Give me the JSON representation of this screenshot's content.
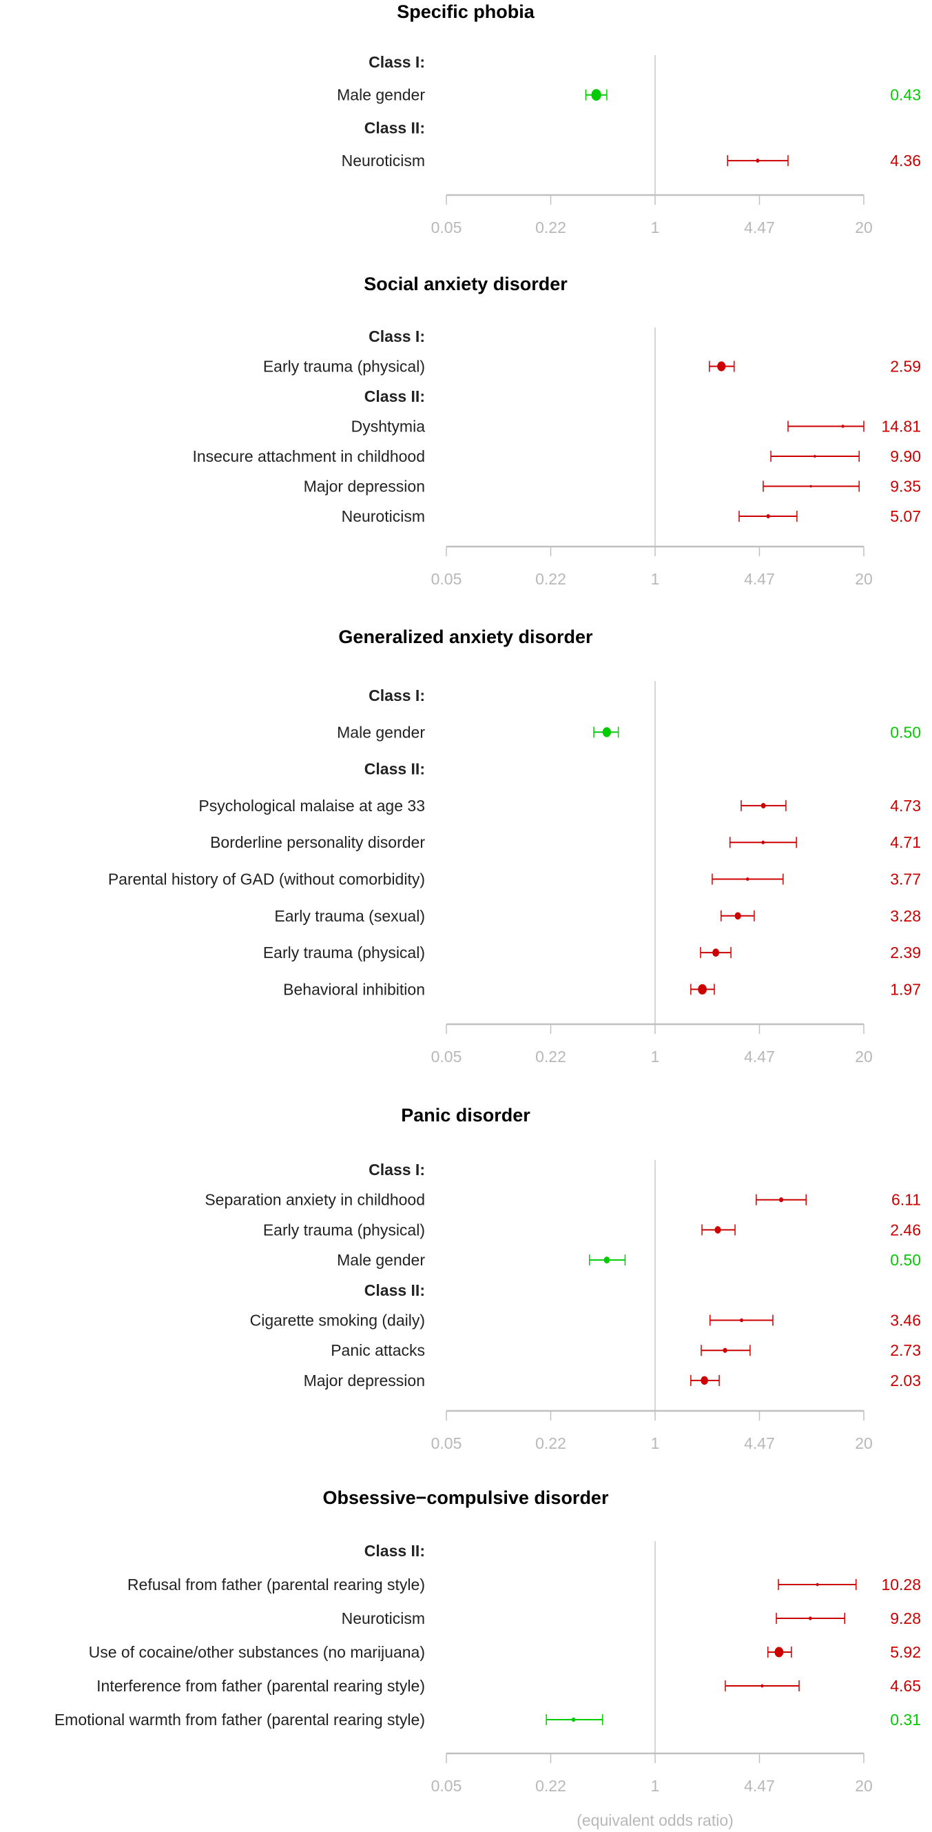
{
  "colors": {
    "risk": "#CC0000",
    "protective": "#00CC00",
    "axis": "#C0C0C0",
    "refline": "#C8C8C8"
  },
  "chart_data": [
    {
      "type": "forest",
      "title": "Specific phobia",
      "x_scale": "log",
      "xlim": [
        0.05,
        20
      ],
      "ticks": [
        "0.05",
        "0.22",
        "1",
        "4.47",
        "20"
      ],
      "tick_values": [
        0.05,
        0.2236,
        1,
        4.472,
        20
      ],
      "rows": [
        {
          "header": true,
          "label": "Class I:"
        },
        {
          "label": "Male gender",
          "or": 0.43,
          "ci_low": 0.37,
          "ci_high": 0.5,
          "value_text": "0.43"
        },
        {
          "header": true,
          "label": "Class II:"
        },
        {
          "label": "Neuroticism",
          "or": 4.36,
          "ci_low": 2.83,
          "ci_high": 6.74,
          "value_text": "4.36"
        }
      ]
    },
    {
      "type": "forest",
      "title": "Social anxiety disorder",
      "x_scale": "log",
      "xlim": [
        0.05,
        20
      ],
      "ticks": [
        "0.05",
        "0.22",
        "1",
        "4.47",
        "20"
      ],
      "tick_values": [
        0.05,
        0.2236,
        1,
        4.472,
        20
      ],
      "rows": [
        {
          "header": true,
          "label": "Class I:"
        },
        {
          "label": "Early trauma (physical)",
          "or": 2.59,
          "ci_low": 2.18,
          "ci_high": 3.11,
          "value_text": "2.59"
        },
        {
          "header": true,
          "label": "Class II:"
        },
        {
          "label": "Dyshtymia",
          "or": 14.81,
          "ci_low": 6.74,
          "ci_high": 20,
          "value_text": "14.81"
        },
        {
          "label": "Insecure attachment in childhood",
          "or": 9.9,
          "ci_low": 5.27,
          "ci_high": 18.7,
          "value_text": "9.90"
        },
        {
          "label": "Major depression",
          "or": 9.35,
          "ci_low": 4.72,
          "ci_high": 18.7,
          "value_text": "9.35"
        },
        {
          "label": "Neuroticism",
          "or": 5.07,
          "ci_low": 3.34,
          "ci_high": 7.66,
          "value_text": "5.07"
        }
      ]
    },
    {
      "type": "forest",
      "title": "Generalized anxiety disorder",
      "x_scale": "log",
      "xlim": [
        0.05,
        20
      ],
      "ticks": [
        "0.05",
        "0.22",
        "1",
        "4.47",
        "20"
      ],
      "tick_values": [
        0.05,
        0.2236,
        1,
        4.472,
        20
      ],
      "rows": [
        {
          "header": true,
          "label": "Class I:"
        },
        {
          "label": "Male gender",
          "or": 0.5,
          "ci_low": 0.415,
          "ci_high": 0.59,
          "value_text": "0.50"
        },
        {
          "header": true,
          "label": "Class II:"
        },
        {
          "label": "Psychological malaise at age 33",
          "or": 4.73,
          "ci_low": 3.44,
          "ci_high": 6.54,
          "value_text": "4.73"
        },
        {
          "label": "Borderline personality disorder",
          "or": 4.71,
          "ci_low": 2.93,
          "ci_high": 7.6,
          "value_text": "4.71"
        },
        {
          "label": "Parental history of GAD (without comorbidity)",
          "or": 3.77,
          "ci_low": 2.27,
          "ci_high": 6.28,
          "value_text": "3.77"
        },
        {
          "label": "Early trauma (sexual)",
          "or": 3.28,
          "ci_low": 2.58,
          "ci_high": 4.15,
          "value_text": "3.28"
        },
        {
          "label": "Early trauma (physical)",
          "or": 2.39,
          "ci_low": 1.92,
          "ci_high": 2.97,
          "value_text": "2.39"
        },
        {
          "label": "Behavioral inhibition",
          "or": 1.97,
          "ci_low": 1.67,
          "ci_high": 2.34,
          "value_text": "1.97"
        }
      ]
    },
    {
      "type": "forest",
      "title": "Panic disorder",
      "x_scale": "log",
      "xlim": [
        0.05,
        20
      ],
      "ticks": [
        "0.05",
        "0.22",
        "1",
        "4.47",
        "20"
      ],
      "tick_values": [
        0.05,
        0.2236,
        1,
        4.472,
        20
      ],
      "rows": [
        {
          "header": true,
          "label": "Class I:"
        },
        {
          "label": "Separation anxiety in childhood",
          "or": 6.11,
          "ci_low": 4.27,
          "ci_high": 8.74,
          "value_text": "6.11"
        },
        {
          "label": "Early trauma (physical)",
          "or": 2.46,
          "ci_low": 1.96,
          "ci_high": 3.15,
          "value_text": "2.46"
        },
        {
          "label": "Male gender",
          "or": 0.5,
          "ci_low": 0.39,
          "ci_high": 0.65,
          "value_text": "0.50"
        },
        {
          "header": true,
          "label": "Class II:"
        },
        {
          "label": "Cigarette smoking (daily)",
          "or": 3.46,
          "ci_low": 2.2,
          "ci_high": 5.42,
          "value_text": "3.46"
        },
        {
          "label": "Panic attacks",
          "or": 2.73,
          "ci_low": 1.94,
          "ci_high": 3.91,
          "value_text": "2.73"
        },
        {
          "label": "Major depression",
          "or": 2.03,
          "ci_low": 1.67,
          "ci_high": 2.51,
          "value_text": "2.03"
        }
      ]
    },
    {
      "type": "forest",
      "title": "Obsessive−compulsive disorder",
      "x_scale": "log",
      "xlim": [
        0.05,
        20
      ],
      "ticks": [
        "0.05",
        "0.22",
        "1",
        "4.47",
        "20"
      ],
      "tick_values": [
        0.05,
        0.2236,
        1,
        4.472,
        20
      ],
      "xlabel": "(equivalent odds ratio)",
      "rows": [
        {
          "header": true,
          "label": "Class II:"
        },
        {
          "label": "Refusal from father (parental rearing style)",
          "or": 10.28,
          "ci_low": 5.87,
          "ci_high": 17.9,
          "value_text": "10.28"
        },
        {
          "label": "Neuroticism",
          "or": 9.28,
          "ci_low": 5.7,
          "ci_high": 15.2,
          "value_text": "9.28"
        },
        {
          "label": "Use of cocaine/other substances (no marijuana)",
          "or": 5.92,
          "ci_low": 5.05,
          "ci_high": 7.08,
          "value_text": "5.92"
        },
        {
          "label": "Interference from father (parental rearing style)",
          "or": 4.65,
          "ci_low": 2.74,
          "ci_high": 7.9,
          "value_text": "4.65"
        },
        {
          "label": "Emotional warmth from father (parental rearing style)",
          "or": 0.31,
          "ci_low": 0.21,
          "ci_high": 0.47,
          "value_text": "0.31"
        }
      ]
    }
  ]
}
